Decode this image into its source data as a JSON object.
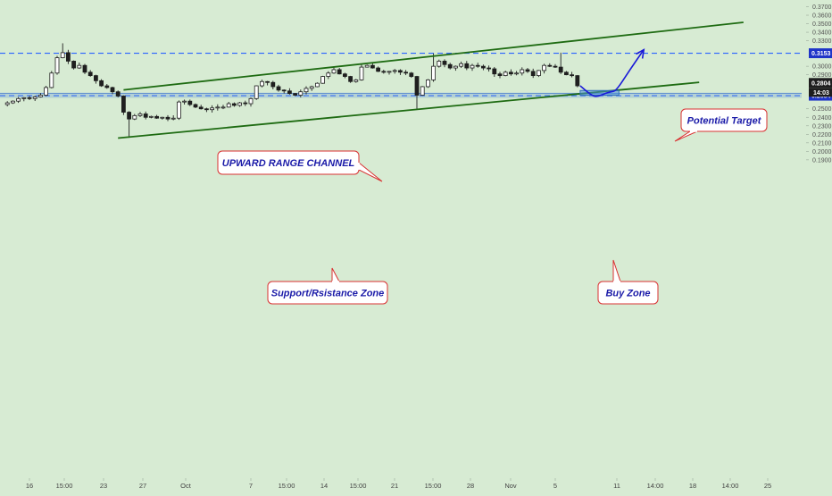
{
  "chart_data": {
    "type": "candlestick",
    "title": "",
    "xlabel": "",
    "ylabel": "",
    "ylim": [
      0.18,
      0.375
    ],
    "y_ticks": [
      "0.3700",
      "0.3600",
      "0.3500",
      "0.3400",
      "0.3300",
      "0.3200",
      "0.3100",
      "0.3000",
      "0.2900",
      "0.2700",
      "0.2600",
      "0.2500",
      "0.2400",
      "0.2300",
      "0.2200",
      "0.2100",
      "0.2000",
      "0.1900"
    ],
    "x_ticks": [
      "16",
      "15:00",
      "23",
      "27",
      "Oct",
      "7",
      "15:00",
      "14",
      "15:00",
      "21",
      "15:00",
      "28",
      "Nov",
      "5",
      "11",
      "14:00",
      "18",
      "14:00",
      "25"
    ],
    "price_path": [
      [
        0,
        0.255
      ],
      [
        1,
        0.257
      ],
      [
        2,
        0.259
      ],
      [
        3,
        0.262
      ],
      [
        4,
        0.263
      ],
      [
        5,
        0.262
      ],
      [
        6,
        0.264
      ],
      [
        7,
        0.266
      ],
      [
        8,
        0.275
      ],
      [
        9,
        0.292
      ],
      [
        10,
        0.31
      ],
      [
        11,
        0.316
      ],
      [
        12,
        0.306
      ],
      [
        13,
        0.298
      ],
      [
        14,
        0.301
      ],
      [
        15,
        0.293
      ],
      [
        16,
        0.289
      ],
      [
        17,
        0.283
      ],
      [
        18,
        0.277
      ],
      [
        19,
        0.275
      ],
      [
        20,
        0.27
      ],
      [
        21,
        0.265
      ],
      [
        22,
        0.246
      ],
      [
        23,
        0.238
      ],
      [
        24,
        0.242
      ],
      [
        25,
        0.244
      ],
      [
        26,
        0.24
      ],
      [
        27,
        0.241
      ],
      [
        28,
        0.239
      ],
      [
        29,
        0.24
      ],
      [
        30,
        0.238
      ],
      [
        31,
        0.239
      ],
      [
        32,
        0.258
      ],
      [
        33,
        0.259
      ],
      [
        34,
        0.255
      ],
      [
        35,
        0.252
      ],
      [
        36,
        0.25
      ],
      [
        37,
        0.249
      ],
      [
        38,
        0.251
      ],
      [
        39,
        0.252
      ],
      [
        40,
        0.252
      ],
      [
        41,
        0.256
      ],
      [
        42,
        0.254
      ],
      [
        43,
        0.257
      ],
      [
        44,
        0.256
      ],
      [
        45,
        0.262
      ],
      [
        46,
        0.277
      ],
      [
        47,
        0.282
      ],
      [
        48,
        0.281
      ],
      [
        49,
        0.276
      ],
      [
        50,
        0.272
      ],
      [
        51,
        0.271
      ],
      [
        52,
        0.268
      ],
      [
        53,
        0.266
      ],
      [
        54,
        0.27
      ],
      [
        55,
        0.274
      ],
      [
        56,
        0.276
      ],
      [
        57,
        0.28
      ],
      [
        58,
        0.288
      ],
      [
        59,
        0.292
      ],
      [
        60,
        0.296
      ],
      [
        61,
        0.291
      ],
      [
        62,
        0.288
      ],
      [
        63,
        0.282
      ],
      [
        64,
        0.284
      ],
      [
        65,
        0.299
      ],
      [
        66,
        0.301
      ],
      [
        67,
        0.298
      ],
      [
        68,
        0.294
      ],
      [
        69,
        0.293
      ],
      [
        70,
        0.294
      ],
      [
        71,
        0.295
      ],
      [
        72,
        0.293
      ],
      [
        73,
        0.292
      ],
      [
        74,
        0.288
      ],
      [
        75,
        0.266
      ],
      [
        76,
        0.276
      ],
      [
        77,
        0.284
      ],
      [
        78,
        0.3
      ],
      [
        79,
        0.306
      ],
      [
        80,
        0.302
      ],
      [
        81,
        0.298
      ],
      [
        82,
        0.3
      ],
      [
        83,
        0.303
      ],
      [
        84,
        0.298
      ],
      [
        85,
        0.301
      ],
      [
        86,
        0.3
      ],
      [
        87,
        0.298
      ],
      [
        88,
        0.297
      ],
      [
        89,
        0.291
      ],
      [
        90,
        0.289
      ],
      [
        91,
        0.293
      ],
      [
        92,
        0.291
      ],
      [
        93,
        0.292
      ],
      [
        94,
        0.296
      ],
      [
        95,
        0.294
      ],
      [
        96,
        0.289
      ],
      [
        97,
        0.295
      ],
      [
        98,
        0.301
      ],
      [
        99,
        0.3
      ],
      [
        100,
        0.299
      ],
      [
        101,
        0.293
      ],
      [
        102,
        0.29
      ],
      [
        103,
        0.289
      ],
      [
        104,
        0.277
      ]
    ],
    "notable_wicks": [
      {
        "index": 11,
        "high": 0.327
      },
      {
        "index": 23,
        "low": 0.216
      },
      {
        "index": 75,
        "low": 0.25
      },
      {
        "index": 78,
        "high": 0.315
      },
      {
        "index": 101,
        "high": 0.316
      }
    ],
    "channel": {
      "upper": {
        "from": {
          "x_index": 22,
          "price": 0.2722
        },
        "to": {
          "x_index": 134,
          "price": 0.3516
        }
      },
      "lower": {
        "from": {
          "x_index": 21,
          "price": 0.2156
        },
        "to": {
          "x_index": 126,
          "price": 0.2811
        }
      }
    },
    "horizontal_levels": [
      {
        "price": 0.3153,
        "label": "0.3153",
        "color": "#2962ff"
      },
      {
        "price": 0.2654,
        "label": "0.2654",
        "color": "#2962ff"
      }
    ],
    "current_price": {
      "price": 0.2804,
      "label": "0.2804",
      "countdown": "14:03"
    },
    "forecast_path": [
      [
        104.5,
        0.277
      ],
      [
        106.5,
        0.266
      ],
      [
        107.5,
        0.264
      ],
      [
        109,
        0.268
      ],
      [
        110,
        0.27
      ],
      [
        111,
        0.271
      ],
      [
        113.5,
        0.296
      ],
      [
        116,
        0.3195
      ]
    ],
    "buy_zone_box": {
      "x0": 104.5,
      "x1": 111.5,
      "y_top": 0.2715,
      "y_bottom": 0.266
    },
    "annotations": [
      {
        "text": "UPWARD RANGE CHANNEL",
        "anchor_index": 68,
        "anchor_price": 0.298
      },
      {
        "text": "Support/Rsistance Zone",
        "anchor_index": 58,
        "anchor_price": 0.2654
      },
      {
        "text": "Potential Target",
        "anchor_index": 120,
        "anchor_price": 0.3153
      },
      {
        "text": "Buy Zone",
        "anchor_index": 107,
        "anchor_price": 0.2665
      }
    ],
    "grid": false,
    "colors": {
      "background": "#d7ebd3",
      "candle": "#1f1f1f",
      "channel": "#1e6b12",
      "level": "#2962ff",
      "zone_fill": "#4a90d9",
      "forecast": "#1a1ad8",
      "callout_border": "#d93030",
      "callout_text": "#1a1aa8",
      "badge": "#1f35c8"
    }
  }
}
